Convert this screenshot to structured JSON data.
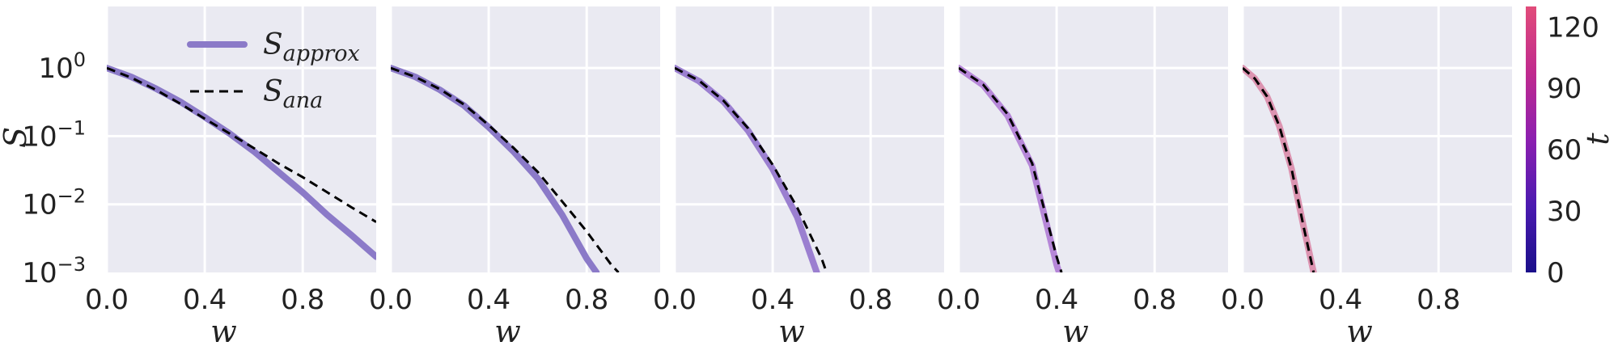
{
  "chart_data": {
    "type": "line",
    "y_scale": "log",
    "grid": true,
    "background": "#eaeaf2",
    "panels": [
      {
        "xlabel": "w",
        "ylabel": "S",
        "xlim": [
          0,
          1.1
        ],
        "ylim": [
          0.001,
          8
        ],
        "xticks": [
          "0.0",
          "0.4",
          "0.8"
        ],
        "yticks": [
          {
            "base": "10",
            "exp": "0",
            "value": 1
          },
          {
            "base": "10",
            "exp": "−1",
            "value": 0.1
          },
          {
            "base": "10",
            "exp": "−2",
            "value": 0.01
          },
          {
            "base": "10",
            "exp": "−3",
            "value": 0.001
          }
        ],
        "legend": {
          "placement": "top-center",
          "entries": [
            {
              "symbol": "S",
              "sub": "approx",
              "style": "solid"
            },
            {
              "symbol": "S",
              "sub": "ana",
              "style": "dashed"
            }
          ]
        },
        "series": [
          {
            "style": "solid",
            "color": "#8b7ac8",
            "x": [
              0,
              0.1,
              0.2,
              0.3,
              0.4,
              0.5,
              0.6,
              0.7,
              0.8,
              0.9,
              1.0,
              1.1
            ],
            "y": [
              1.0,
              0.74,
              0.5,
              0.32,
              0.19,
              0.11,
              0.06,
              0.03,
              0.015,
              0.007,
              0.0035,
              0.0017
            ]
          },
          {
            "style": "dashed",
            "color": "#000000",
            "x": [
              0,
              0.1,
              0.2,
              0.3,
              0.4,
              0.5,
              0.6,
              0.7,
              0.8,
              0.9,
              1.0,
              1.1
            ],
            "y": [
              1.0,
              0.72,
              0.48,
              0.3,
              0.18,
              0.11,
              0.067,
              0.04,
              0.025,
              0.015,
              0.009,
              0.0055
            ]
          }
        ]
      },
      {
        "xlabel": "w",
        "xlim": [
          0,
          1.1
        ],
        "ylim": [
          0.001,
          8
        ],
        "xticks": [
          "0.0",
          "0.4",
          "0.8"
        ],
        "series": [
          {
            "style": "solid",
            "color": "#8b7ac8",
            "x": [
              0,
              0.1,
              0.2,
              0.3,
              0.4,
              0.5,
              0.6,
              0.7,
              0.8,
              0.84
            ],
            "y": [
              1.0,
              0.74,
              0.48,
              0.28,
              0.135,
              0.06,
              0.024,
              0.007,
              0.0016,
              0.001
            ]
          },
          {
            "style": "dashed",
            "color": "#000000",
            "x": [
              0,
              0.1,
              0.2,
              0.3,
              0.4,
              0.5,
              0.6,
              0.7,
              0.8,
              0.9,
              0.93
            ],
            "y": [
              1.0,
              0.74,
              0.49,
              0.29,
              0.145,
              0.068,
              0.03,
              0.011,
              0.004,
              0.0013,
              0.001
            ]
          }
        ]
      },
      {
        "xlabel": "w",
        "xlim": [
          0,
          1.1
        ],
        "ylim": [
          0.001,
          8
        ],
        "xticks": [
          "0.0",
          "0.4",
          "0.8"
        ],
        "series": [
          {
            "style": "solid",
            "color": "#9b7fd0",
            "x": [
              0,
              0.1,
              0.2,
              0.3,
              0.4,
              0.5,
              0.58
            ],
            "y": [
              1.0,
              0.64,
              0.32,
              0.12,
              0.033,
              0.0065,
              0.001
            ]
          },
          {
            "style": "dashed",
            "color": "#000000",
            "x": [
              0,
              0.1,
              0.2,
              0.3,
              0.4,
              0.5,
              0.6,
              0.62
            ],
            "y": [
              1.0,
              0.65,
              0.33,
              0.13,
              0.038,
              0.009,
              0.0016,
              0.001
            ]
          }
        ]
      },
      {
        "xlabel": "w",
        "xlim": [
          0,
          1.1
        ],
        "ylim": [
          0.001,
          8
        ],
        "xticks": [
          "0.0",
          "0.4",
          "0.8"
        ],
        "series": [
          {
            "style": "solid",
            "color": "#b687d8",
            "x": [
              0,
              0.1,
              0.2,
              0.3,
              0.4,
              0.41
            ],
            "y": [
              1.0,
              0.56,
              0.2,
              0.037,
              0.0013,
              0.001
            ]
          },
          {
            "style": "dashed",
            "color": "#000000",
            "x": [
              0,
              0.1,
              0.2,
              0.3,
              0.4,
              0.42
            ],
            "y": [
              1.0,
              0.57,
              0.21,
              0.04,
              0.0017,
              0.001
            ]
          }
        ]
      },
      {
        "xlabel": "w",
        "xlim": [
          0,
          1.1
        ],
        "ylim": [
          0.001,
          8
        ],
        "xticks": [
          "0.0",
          "0.4",
          "0.8"
        ],
        "series": [
          {
            "style": "solid",
            "color": "#dc93b0",
            "x": [
              0,
              0.05,
              0.1,
              0.15,
              0.2,
              0.25,
              0.29
            ],
            "y": [
              1.0,
              0.7,
              0.38,
              0.14,
              0.033,
              0.0045,
              0.001
            ]
          },
          {
            "style": "dashed",
            "color": "#000000",
            "x": [
              0,
              0.05,
              0.1,
              0.15,
              0.2,
              0.25,
              0.29
            ],
            "y": [
              1.0,
              0.7,
              0.38,
              0.14,
              0.033,
              0.0045,
              0.001
            ]
          }
        ]
      }
    ],
    "colorbar": {
      "label": "t",
      "min": 0,
      "max": 130,
      "ticks": [
        "0",
        "30",
        "60",
        "90",
        "120"
      ],
      "tick_values": [
        0,
        30,
        60,
        90,
        120
      ],
      "colors": [
        "#1a0f8a",
        "#4b1ab0",
        "#8c1fb0",
        "#c02a8e",
        "#e14c7a"
      ]
    }
  }
}
